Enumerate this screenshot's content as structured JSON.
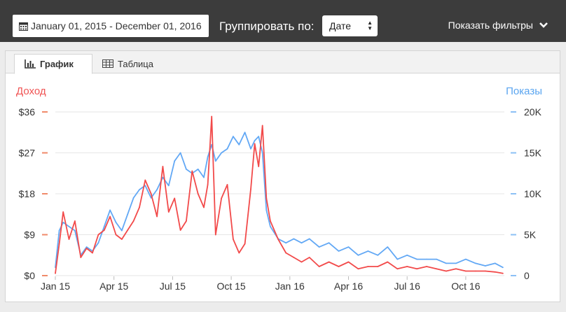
{
  "toolbar": {
    "date_range": "January 01, 2015 - December 01, 2016",
    "group_label": "Группировать по:",
    "group_value": "Дате",
    "filters_label": "Показать фильтры"
  },
  "tabs": {
    "chart": "График",
    "table": "Таблица"
  },
  "colors": {
    "revenue": "#f24a4a",
    "impressions": "#62a8f5",
    "toolbar_bg": "#3c3c3c"
  },
  "chart_data": {
    "type": "line",
    "left_axis_label": "Доход",
    "right_axis_label": "Показы",
    "left_ticks": [
      "$0",
      "$9",
      "$18",
      "$27",
      "$36"
    ],
    "right_ticks": [
      "0",
      "5K",
      "10K",
      "15K",
      "20K"
    ],
    "ylim_left": [
      0,
      36
    ],
    "ylim_right": [
      0,
      20000
    ],
    "x_tick_labels": [
      "Jan 15",
      "Apr 15",
      "Jul 15",
      "Oct 15",
      "Jan 16",
      "Apr 16",
      "Jul 16",
      "Oct 16"
    ],
    "x_tick_months": [
      0,
      3,
      6,
      9,
      12,
      15,
      18,
      21
    ],
    "x_range_months": [
      0,
      23
    ],
    "series": [
      {
        "name": "Доход",
        "axis": "left",
        "x_months": [
          0,
          0.2,
          0.4,
          0.7,
          1,
          1.3,
          1.6,
          1.9,
          2.2,
          2.5,
          2.8,
          3.1,
          3.4,
          3.7,
          4,
          4.3,
          4.6,
          4.9,
          5.2,
          5.5,
          5.8,
          6.1,
          6.4,
          6.7,
          7,
          7.3,
          7.6,
          7.8,
          8,
          8.2,
          8.5,
          8.8,
          9.1,
          9.4,
          9.7,
          10,
          10.2,
          10.4,
          10.6,
          10.8,
          11,
          11.4,
          11.8,
          12.2,
          12.6,
          13,
          13.5,
          14,
          14.5,
          15,
          15.5,
          16,
          16.5,
          17,
          17.5,
          18,
          18.5,
          19,
          19.5,
          20,
          20.5,
          21,
          21.5,
          22,
          22.5,
          22.9
        ],
        "values": [
          0.5,
          7,
          14,
          8,
          12,
          4,
          6,
          5,
          9,
          10,
          13,
          9,
          8,
          10,
          12,
          15,
          21,
          18,
          13,
          24,
          14,
          17,
          10,
          12,
          23,
          18,
          15,
          20,
          35,
          9,
          17,
          20,
          8,
          5,
          7,
          19,
          29,
          24,
          33,
          17,
          12,
          8,
          5,
          4,
          3,
          4,
          2,
          3,
          2,
          3,
          1.5,
          2,
          2,
          3,
          1.5,
          2,
          1.5,
          2,
          1.5,
          1,
          1.5,
          1,
          1,
          1,
          0.8,
          0.5
        ]
      },
      {
        "name": "Показы",
        "axis": "right",
        "x_months": [
          0,
          0.2,
          0.4,
          0.7,
          1,
          1.3,
          1.6,
          1.9,
          2.2,
          2.5,
          2.8,
          3.1,
          3.4,
          3.7,
          4,
          4.3,
          4.6,
          4.9,
          5.2,
          5.5,
          5.8,
          6.1,
          6.4,
          6.7,
          7,
          7.3,
          7.6,
          7.8,
          8,
          8.2,
          8.5,
          8.8,
          9.1,
          9.4,
          9.7,
          10,
          10.2,
          10.4,
          10.6,
          10.8,
          11,
          11.4,
          11.8,
          12.2,
          12.6,
          13,
          13.5,
          14,
          14.5,
          15,
          15.5,
          16,
          16.5,
          17,
          17.5,
          18,
          18.5,
          19,
          19.5,
          20,
          20.5,
          21,
          21.5,
          22,
          22.5,
          22.9
        ],
        "values": [
          1000,
          5500,
          6500,
          6000,
          5500,
          2500,
          3500,
          3000,
          4000,
          6000,
          8000,
          6500,
          5500,
          7500,
          9500,
          10500,
          11000,
          9500,
          10500,
          12000,
          11000,
          14000,
          15000,
          13000,
          12500,
          13000,
          12000,
          14500,
          16000,
          14000,
          15000,
          15500,
          17000,
          16000,
          17500,
          15500,
          16500,
          17000,
          15000,
          8000,
          6000,
          4500,
          4000,
          4500,
          4000,
          4500,
          3500,
          4000,
          3000,
          3500,
          2500,
          3000,
          2500,
          3500,
          2000,
          2500,
          2000,
          2000,
          2000,
          1500,
          1500,
          2000,
          1500,
          1200,
          1500,
          1000
        ]
      }
    ]
  }
}
